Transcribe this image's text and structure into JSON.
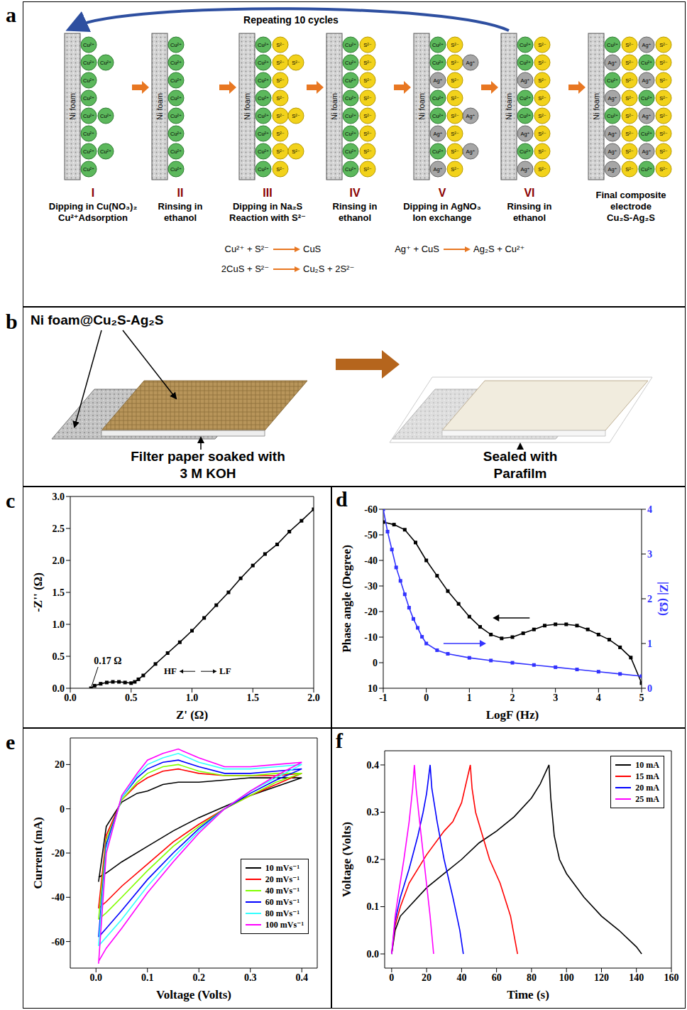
{
  "panel_letters": [
    "a",
    "b",
    "c",
    "d",
    "e",
    "f"
  ],
  "scheme_a": {
    "cycle_label": "Repeating 10 cycles",
    "substrate": "Ni foam",
    "ions": {
      "Cu": "Cu²⁺",
      "S": "S²⁻",
      "Ag": "Ag⁺"
    },
    "steps": [
      {
        "numeral": "I",
        "caption": [
          "Dipping in Cu(NO₃)₂",
          "Cu²⁺Adsorption"
        ]
      },
      {
        "numeral": "II",
        "caption": [
          "Rinsing in",
          "ethanol"
        ]
      },
      {
        "numeral": "III",
        "caption": [
          "Dipping in Na₂S",
          "Reaction with S²⁻"
        ]
      },
      {
        "numeral": "IV",
        "caption": [
          "Rinsing in",
          "ethanol"
        ]
      },
      {
        "numeral": "V",
        "caption": [
          "Dipping in AgNO₃",
          "Ion exchange"
        ]
      },
      {
        "numeral": "VI",
        "caption": [
          "Rinsing in",
          "ethanol"
        ]
      },
      {
        "caption": [
          "Final composite",
          "electrode",
          "Cu₂S-Ag₂S"
        ]
      }
    ],
    "equations": [
      {
        "left": "Cu²⁺ + S²⁻",
        "right": "CuS"
      },
      {
        "left": "2CuS + S²⁻",
        "right": "Cu₂S + 2S²⁻"
      },
      {
        "left": "Ag⁺ + CuS",
        "right": "Ag₂S + Cu²⁺"
      }
    ]
  },
  "device_b": {
    "electrode": "Ni foam@Cu₂S-Ag₂S",
    "separator": [
      "Filter paper soaked with",
      "3 M KOH"
    ],
    "seal": [
      "Sealed with",
      "Parafilm"
    ]
  },
  "chart_data": [
    {
      "type": "line",
      "x_label": "Z' (Ω)",
      "y_label": "-Z'' (Ω)",
      "annotations": [
        "0.17 Ω",
        "HF",
        "LF"
      ],
      "marker": "square",
      "xlim": [
        0,
        2.0
      ],
      "xticks": [
        {
          "value": 0,
          "label": "0.0"
        },
        0.5,
        {
          "value": 1,
          "label": "1.0"
        },
        1.5,
        {
          "value": 2,
          "label": "2.0"
        }
      ],
      "ylim": [
        0,
        3.0
      ],
      "yticks": [
        {
          "value": 0,
          "label": "0.0"
        },
        0.5,
        {
          "value": 1,
          "label": "1.0"
        },
        1.5,
        {
          "value": 2,
          "label": "2.0"
        },
        2.5,
        {
          "value": 3,
          "label": "3.0"
        }
      ],
      "series": [
        {
          "color": "#000000",
          "x": [
            0.17,
            0.2,
            0.25,
            0.3,
            0.35,
            0.4,
            0.45,
            0.5,
            0.53,
            0.56,
            0.6,
            0.7,
            0.8,
            0.9,
            1.0,
            1.1,
            1.2,
            1.3,
            1.4,
            1.5,
            1.6,
            1.7,
            1.8,
            1.9,
            2.0
          ],
          "values": [
            0,
            0.04,
            0.07,
            0.09,
            0.1,
            0.1,
            0.09,
            0.08,
            0.1,
            0.14,
            0.2,
            0.38,
            0.55,
            0.72,
            0.9,
            1.1,
            1.3,
            1.5,
            1.72,
            1.92,
            2.1,
            2.25,
            2.45,
            2.62,
            2.8
          ]
        }
      ]
    },
    {
      "type": "line",
      "x_label": "LogF (Hz)",
      "y_label": "Phase angle (Degree)",
      "y2_label": "|Z| (Ω)",
      "marker": "square",
      "xlim": [
        -1,
        5
      ],
      "xticks": [
        -1,
        0,
        1,
        2,
        3,
        4,
        5
      ],
      "ylim": [
        10,
        -60
      ],
      "yticks": [
        -60,
        -50,
        -40,
        -30,
        -20,
        -10,
        0,
        10
      ],
      "y2lim": [
        0,
        4
      ],
      "y2ticks": [
        0,
        1,
        2,
        3,
        4
      ],
      "series": [
        {
          "color": "#000000",
          "axis": "y",
          "x": [
            -1,
            -0.75,
            -0.5,
            -0.25,
            0,
            0.25,
            0.5,
            0.75,
            1,
            1.25,
            1.5,
            1.75,
            2,
            2.25,
            2.5,
            2.75,
            3,
            3.25,
            3.5,
            3.75,
            4,
            4.25,
            4.5,
            4.75,
            5
          ],
          "values": [
            -55,
            -54,
            -52,
            -47,
            -40,
            -34,
            -28,
            -23,
            -18,
            -14,
            -11,
            -9.5,
            -10,
            -11.5,
            -13,
            -14.5,
            -15,
            -15,
            -14.5,
            -13,
            -11,
            -9,
            -6,
            -2,
            8
          ]
        },
        {
          "color": "#3333ff",
          "axis": "y2",
          "x": [
            -1,
            -0.9,
            -0.8,
            -0.7,
            -0.6,
            -0.5,
            -0.4,
            -0.3,
            -0.2,
            -0.1,
            0,
            0.25,
            0.5,
            1,
            1.5,
            2,
            2.5,
            3,
            3.5,
            4,
            4.5,
            5
          ],
          "values": [
            4.0,
            3.5,
            3.1,
            2.7,
            2.4,
            2.1,
            1.8,
            1.55,
            1.35,
            1.15,
            1.0,
            0.85,
            0.77,
            0.68,
            0.62,
            0.57,
            0.52,
            0.47,
            0.42,
            0.37,
            0.32,
            0.27
          ]
        }
      ]
    },
    {
      "type": "line",
      "x_label": "Voltage (Volts)",
      "y_label": "Current (mA)",
      "marker": "none",
      "legend": "lower right",
      "xlim": [
        -0.05,
        0.43
      ],
      "xticks": [
        {
          "value": 0,
          "label": "0.0"
        },
        0.1,
        0.2,
        0.3,
        0.4
      ],
      "ylim": [
        -72,
        32
      ],
      "yticks": [
        -60,
        -40,
        -20,
        0,
        20
      ],
      "series": [
        {
          "name": "10 mVs⁻¹",
          "color": "#000000",
          "x": [
            0.005,
            0.02,
            0.05,
            0.08,
            0.1,
            0.13,
            0.16,
            0.2,
            0.25,
            0.3,
            0.35,
            0.4,
            0.35,
            0.3,
            0.25,
            0.2,
            0.15,
            0.1,
            0.05,
            0.02,
            0.005
          ],
          "values": [
            -33,
            -8,
            3,
            7,
            8,
            11,
            12,
            12,
            13,
            14,
            14,
            14,
            10,
            6,
            1,
            -4,
            -10,
            -17,
            -24,
            -29,
            -31
          ]
        },
        {
          "name": "20 mVs⁻¹",
          "color": "#ff0000",
          "x": [
            0.005,
            0.02,
            0.05,
            0.08,
            0.1,
            0.13,
            0.16,
            0.2,
            0.25,
            0.3,
            0.35,
            0.4,
            0.35,
            0.3,
            0.25,
            0.2,
            0.15,
            0.1,
            0.05,
            0.02,
            0.005
          ],
          "values": [
            -45,
            -12,
            4,
            11,
            14,
            17,
            18,
            16,
            15,
            15,
            15,
            16,
            11,
            6,
            0,
            -7,
            -15,
            -25,
            -35,
            -42,
            -45
          ]
        },
        {
          "name": "40 mVs⁻¹",
          "color": "#80ff00",
          "x": [
            0.005,
            0.02,
            0.05,
            0.08,
            0.1,
            0.13,
            0.16,
            0.2,
            0.25,
            0.3,
            0.35,
            0.4,
            0.35,
            0.3,
            0.25,
            0.2,
            0.15,
            0.1,
            0.05,
            0.02,
            0.005
          ],
          "values": [
            -50,
            -14,
            4,
            12,
            16,
            19,
            20,
            17,
            15,
            15,
            16,
            16,
            12,
            6,
            0,
            -8,
            -17,
            -28,
            -40,
            -47,
            -50
          ]
        },
        {
          "name": "60 mVs⁻¹",
          "color": "#0000ff",
          "x": [
            0.005,
            0.02,
            0.05,
            0.08,
            0.1,
            0.13,
            0.16,
            0.2,
            0.25,
            0.3,
            0.35,
            0.4,
            0.35,
            0.3,
            0.25,
            0.2,
            0.15,
            0.1,
            0.05,
            0.02,
            0.005
          ],
          "values": [
            -58,
            -16,
            5,
            14,
            18,
            21,
            22,
            19,
            16,
            16,
            17,
            18,
            13,
            7,
            0,
            -9,
            -20,
            -32,
            -46,
            -54,
            -58
          ]
        },
        {
          "name": "80 mVs⁻¹",
          "color": "#33ffff",
          "x": [
            0.005,
            0.02,
            0.05,
            0.08,
            0.1,
            0.13,
            0.16,
            0.2,
            0.25,
            0.3,
            0.35,
            0.4,
            0.35,
            0.3,
            0.25,
            0.2,
            0.15,
            0.1,
            0.05,
            0.02,
            0.005
          ],
          "values": [
            -62,
            -18,
            5,
            15,
            20,
            23,
            25,
            21,
            18,
            18,
            19,
            20,
            14,
            8,
            0,
            -10,
            -22,
            -35,
            -50,
            -58,
            -62
          ]
        },
        {
          "name": "100 mVs⁻¹",
          "color": "#ff00ff",
          "x": [
            0.005,
            0.02,
            0.05,
            0.08,
            0.1,
            0.13,
            0.16,
            0.2,
            0.25,
            0.3,
            0.35,
            0.4,
            0.35,
            0.3,
            0.25,
            0.2,
            0.15,
            0.1,
            0.05,
            0.02,
            0.005
          ],
          "values": [
            -70,
            -20,
            6,
            16,
            22,
            25,
            27,
            23,
            19,
            19,
            20,
            21,
            15,
            8,
            0,
            -11,
            -24,
            -38,
            -54,
            -63,
            -69
          ]
        }
      ]
    },
    {
      "type": "line",
      "x_label": "Time (s)",
      "y_label": "Voltage (Volts)",
      "marker": "none",
      "legend": "upper right",
      "xlim": [
        -4,
        160
      ],
      "xticks": [
        0,
        20,
        40,
        60,
        80,
        100,
        120,
        140,
        160
      ],
      "ylim": [
        -0.03,
        0.43
      ],
      "yticks": [
        {
          "value": 0,
          "label": "0.0"
        },
        0.1,
        0.2,
        0.3,
        0.4
      ],
      "series": [
        {
          "name": "10 mA",
          "color": "#000000",
          "x": [
            0,
            2,
            5,
            10,
            20,
            30,
            40,
            50,
            60,
            70,
            80,
            85,
            90,
            91,
            93,
            96,
            100,
            110,
            120,
            130,
            140,
            143
          ],
          "values": [
            0,
            0.05,
            0.08,
            0.1,
            0.14,
            0.17,
            0.2,
            0.235,
            0.26,
            0.29,
            0.33,
            0.36,
            0.4,
            0.33,
            0.25,
            0.2,
            0.17,
            0.12,
            0.08,
            0.05,
            0.015,
            0
          ]
        },
        {
          "name": "15 mA",
          "color": "#ff0000",
          "x": [
            0,
            2,
            5,
            10,
            20,
            30,
            35,
            40,
            45,
            46,
            48,
            52,
            56,
            62,
            68,
            72
          ],
          "values": [
            0,
            0.06,
            0.1,
            0.15,
            0.21,
            0.26,
            0.28,
            0.32,
            0.4,
            0.35,
            0.3,
            0.25,
            0.2,
            0.15,
            0.08,
            0
          ]
        },
        {
          "name": "20 mA",
          "color": "#0000ff",
          "x": [
            0,
            2,
            5,
            10,
            15,
            18,
            20,
            22,
            23,
            26,
            30,
            35,
            39,
            41
          ],
          "values": [
            0,
            0.07,
            0.12,
            0.18,
            0.25,
            0.3,
            0.34,
            0.4,
            0.35,
            0.28,
            0.2,
            0.12,
            0.05,
            0
          ]
        },
        {
          "name": "25 mA",
          "color": "#ff00ff",
          "x": [
            0,
            2,
            4,
            7,
            10,
            12,
            13,
            14,
            16,
            19,
            22,
            24
          ],
          "values": [
            0,
            0.08,
            0.13,
            0.2,
            0.28,
            0.35,
            0.4,
            0.35,
            0.28,
            0.18,
            0.08,
            0
          ]
        }
      ]
    }
  ]
}
